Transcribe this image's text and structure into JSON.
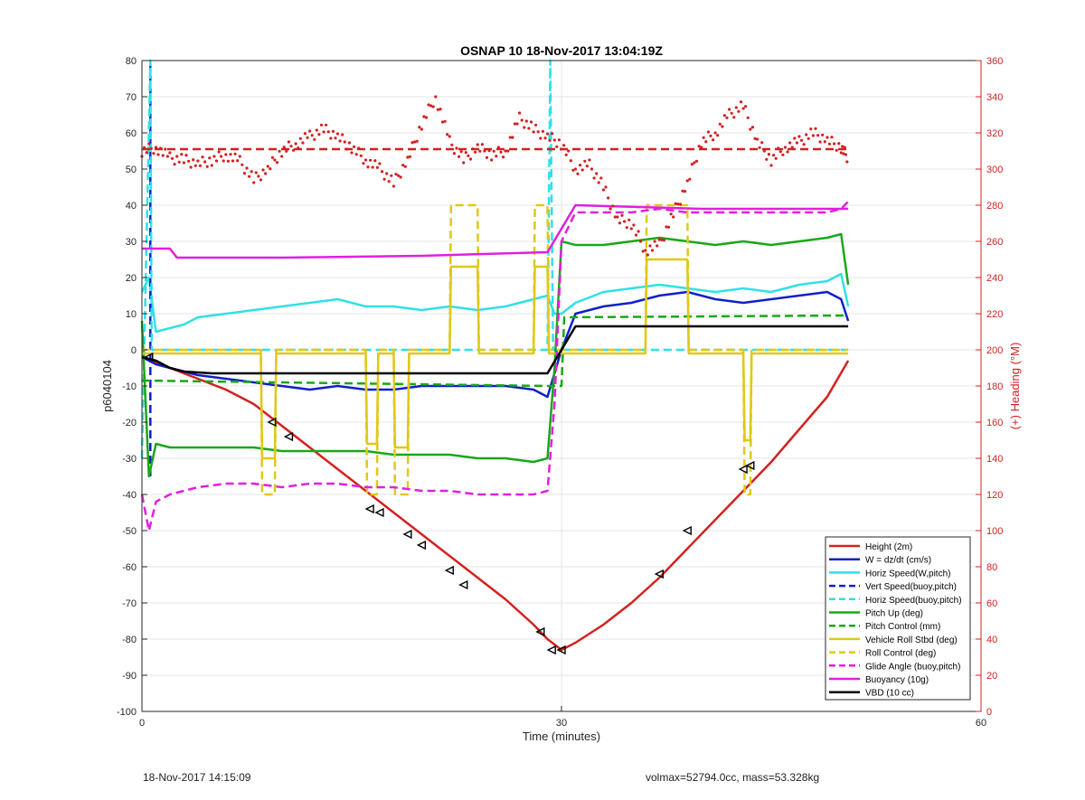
{
  "footer": {
    "left": "18-Nov-2017 14:15:09",
    "right": "volmax=52794.0cc, mass=53.328kg"
  },
  "chart_data": {
    "type": "line",
    "title": "OSNAP 10 18-Nov-2017 13:04:19Z",
    "xlabel": "Time (minutes)",
    "ylabel": "p6040104",
    "y2label": "(+) Heading (°M)",
    "xlim": [
      0,
      60
    ],
    "ylim": [
      -100,
      80
    ],
    "y2lim": [
      0,
      360
    ],
    "xticks": [
      0,
      30,
      60
    ],
    "yticks": [
      -100,
      -90,
      -80,
      -70,
      -60,
      -50,
      -40,
      -30,
      -20,
      -10,
      0,
      10,
      20,
      30,
      40,
      50,
      60,
      70,
      80
    ],
    "y2ticks": [
      0,
      20,
      40,
      60,
      80,
      100,
      120,
      140,
      160,
      180,
      200,
      220,
      240,
      260,
      280,
      300,
      320,
      340,
      360
    ],
    "grid": true,
    "legend_position": "bottom-right",
    "colors": {
      "red": "#d42020",
      "blue": "#1020c8",
      "cyan": "#30e0e8",
      "green": "#18a818",
      "yellow": "#e0c818",
      "magenta": "#e020e0",
      "black": "#000000"
    },
    "series": [
      {
        "name": "Height (2m)",
        "color": "#d42020",
        "style": "solid",
        "x": [
          0,
          2,
          4,
          6,
          8,
          10,
          12,
          14,
          16,
          18,
          20,
          22,
          24,
          26,
          28,
          29,
          30,
          31,
          33,
          35,
          37,
          39,
          41,
          43,
          45,
          47,
          49,
          50.5
        ],
        "y": [
          -2,
          -5,
          -8,
          -11,
          -15,
          -21,
          -27,
          -33,
          -39,
          -45,
          -51,
          -57,
          -63,
          -69,
          -76,
          -80,
          -83,
          -81,
          -76,
          -70,
          -63,
          -55,
          -47,
          -39,
          -31,
          -22,
          -13,
          -3
        ]
      },
      {
        "name": "W = dz/dt (cm/s)",
        "color": "#1020c8",
        "style": "solid",
        "x": [
          0,
          1,
          2,
          4,
          6,
          8,
          10,
          12,
          14,
          16,
          18,
          20,
          22,
          24,
          26,
          28,
          29,
          30,
          31,
          33,
          35,
          37,
          39,
          41,
          43,
          45,
          47,
          49,
          50,
          50.5
        ],
        "y": [
          -2,
          -4,
          -5,
          -7,
          -8,
          -9,
          -10,
          -11,
          -10,
          -11,
          -11,
          -10,
          -10,
          -10,
          -10,
          -11,
          -13,
          0,
          10,
          12,
          13,
          15,
          16,
          14,
          13,
          14,
          15,
          16,
          14,
          8
        ]
      },
      {
        "name": "Horiz Speed(W,pitch)",
        "color": "#30e0e8",
        "style": "solid",
        "x": [
          0,
          0.5,
          1,
          2,
          3,
          4,
          6,
          8,
          10,
          12,
          14,
          16,
          18,
          20,
          22,
          24,
          26,
          28,
          29,
          29.5,
          30,
          31,
          33,
          35,
          37,
          39,
          41,
          43,
          45,
          47,
          49,
          50,
          50.5
        ],
        "y": [
          16,
          20,
          5,
          6,
          7,
          9,
          10,
          11,
          12,
          13,
          14,
          12,
          12,
          11,
          12,
          11,
          12,
          14,
          15,
          10,
          10,
          13,
          16,
          17,
          18,
          17,
          16,
          17,
          16,
          18,
          19,
          21,
          12
        ]
      },
      {
        "name": "Vert Speed(buoy,pitch)",
        "color": "#1020c8",
        "style": "dashed",
        "x": [
          0.6,
          0.6
        ],
        "y": [
          -35,
          80
        ]
      },
      {
        "name": "Horiz Speed(buoy,pitch)",
        "color": "#30e0e8",
        "style": "dashed",
        "x": [
          0,
          0.6,
          0.7,
          1,
          29,
          29.2,
          29.4,
          29.6,
          50.5
        ],
        "y": [
          -30,
          80,
          0,
          0,
          0,
          80,
          0,
          0,
          0
        ]
      },
      {
        "name": "Pitch Up (deg)",
        "color": "#18a818",
        "style": "solid",
        "x": [
          0,
          0.5,
          1,
          2,
          4,
          6,
          8,
          10,
          12,
          14,
          16,
          18,
          20,
          22,
          24,
          26,
          28,
          29,
          29.5,
          30,
          31,
          33,
          35,
          37,
          39,
          41,
          43,
          45,
          47,
          49,
          50,
          50.5
        ],
        "y": [
          8,
          -35,
          -26,
          -27,
          -27,
          -27,
          -27,
          -28,
          -28,
          -28,
          -28,
          -29,
          -29,
          -29,
          -30,
          -30,
          -31,
          -30,
          -5,
          30,
          29,
          29,
          30,
          31,
          30,
          29,
          30,
          29,
          30,
          31,
          32,
          18
        ]
      },
      {
        "name": "Pitch Control (mm)",
        "color": "#18a818",
        "style": "dashed",
        "x": [
          0,
          29,
          30,
          30.2,
          50.5
        ],
        "y": [
          -8.5,
          -10,
          -10,
          9,
          9.5
        ]
      },
      {
        "name": "Vehicle Roll Stbd (deg)",
        "color": "#e0c818",
        "style": "solid",
        "x": [
          0,
          8.5,
          8.6,
          9.5,
          9.6,
          16,
          16.1,
          16.8,
          16.9,
          18,
          18.1,
          19,
          19.1,
          22,
          22.1,
          24,
          24.1,
          28,
          28.1,
          29,
          29.1,
          36,
          36.1,
          39,
          39.1,
          43,
          43.1,
          43.5,
          43.6,
          50.5
        ],
        "y": [
          -1,
          -1,
          -30,
          -30,
          -1,
          -1,
          -26,
          -26,
          -1,
          -1,
          -27,
          -27,
          -1,
          -1,
          23,
          23,
          -1,
          -1,
          23,
          23,
          -1,
          -1,
          25,
          25,
          -1,
          -1,
          -25,
          -25,
          -1,
          -1
        ]
      },
      {
        "name": "Roll Control (deg)",
        "color": "#e0c818",
        "style": "dashed",
        "x": [
          0,
          8.5,
          8.6,
          9.5,
          9.6,
          16,
          16.1,
          16.8,
          16.9,
          18,
          18.1,
          19,
          19.1,
          22,
          22.1,
          24,
          24.1,
          28,
          28.1,
          29,
          29.1,
          36,
          36.1,
          39,
          39.1,
          43,
          43.1,
          43.5,
          43.6,
          50.5
        ],
        "y": [
          0,
          0,
          -40,
          -40,
          0,
          0,
          -40,
          -40,
          0,
          0,
          -40,
          -40,
          0,
          0,
          40,
          40,
          0,
          0,
          40,
          40,
          0,
          0,
          40,
          40,
          0,
          0,
          -40,
          -40,
          0,
          0
        ]
      },
      {
        "name": "Glide Angle (buoy,pitch)",
        "color": "#e020e0",
        "style": "dashed",
        "x": [
          0,
          0.5,
          1,
          2,
          4,
          6,
          8,
          10,
          12,
          14,
          16,
          18,
          20,
          22,
          24,
          26,
          28,
          29,
          29.5,
          30,
          31,
          33,
          35,
          37,
          39,
          41,
          43,
          45,
          47,
          49,
          50,
          50.5
        ],
        "y": [
          -40,
          -50,
          -42,
          -40,
          -38,
          -37,
          -37,
          -38,
          -37,
          -37,
          -38,
          -38,
          -39,
          -39,
          -40,
          -40,
          -40,
          -39,
          -15,
          30,
          38,
          38,
          38,
          39,
          38,
          38,
          38,
          38,
          38,
          38,
          39,
          41
        ]
      },
      {
        "name": "Buoyancy (10g)",
        "color": "#e020e0",
        "style": "solid",
        "x": [
          0,
          2,
          2.5,
          10,
          20,
          29,
          31,
          40,
          50.5
        ],
        "y": [
          28,
          28,
          25.5,
          25.5,
          26,
          27,
          40,
          39,
          39
        ]
      },
      {
        "name": "VBD (10 cc)",
        "color": "#000000",
        "style": "solid",
        "x": [
          0,
          1,
          2,
          3,
          5,
          10,
          20,
          29,
          30,
          31,
          40,
          50.5
        ],
        "y": [
          -2,
          -3,
          -5,
          -6,
          -6.5,
          -6.5,
          -6.5,
          -6.5,
          0,
          6.5,
          6.5,
          6.5
        ]
      }
    ],
    "heading": {
      "name": "Heading",
      "color": "#d42020",
      "axis": "right",
      "style": "dotted",
      "x": [
        0,
        1,
        2,
        3,
        4,
        5,
        6,
        7,
        8,
        9,
        10,
        11,
        12,
        13,
        14,
        15,
        16,
        17,
        18,
        19,
        20,
        21,
        22,
        23,
        24,
        25,
        26,
        27,
        28,
        29,
        30,
        31,
        32,
        33,
        34,
        35,
        36,
        37,
        38,
        39,
        40,
        41,
        42,
        43,
        44,
        45,
        46,
        47,
        48,
        49,
        50,
        50.5
      ],
      "y": [
        310,
        312,
        306,
        305,
        303,
        305,
        308,
        304,
        294,
        300,
        310,
        314,
        318,
        322,
        318,
        312,
        305,
        300,
        292,
        305,
        325,
        340,
        315,
        305,
        312,
        308,
        310,
        328,
        322,
        318,
        314,
        300,
        302,
        290,
        272,
        270,
        255,
        258,
        275,
        292,
        315,
        320,
        330,
        335,
        315,
        305,
        312,
        315,
        320,
        316,
        312,
        306
      ]
    },
    "markers": {
      "style": "triangle",
      "x": [
        0.5,
        9.3,
        10.5,
        16.3,
        17,
        19,
        20,
        22,
        23,
        28.5,
        29.3,
        30,
        37,
        39,
        43,
        43.5
      ],
      "y": [
        -2,
        -20,
        -24,
        -44,
        -45,
        -51,
        -54,
        -61,
        -65,
        -78,
        -83,
        -83,
        -62,
        -50,
        -33,
        -32
      ]
    }
  }
}
